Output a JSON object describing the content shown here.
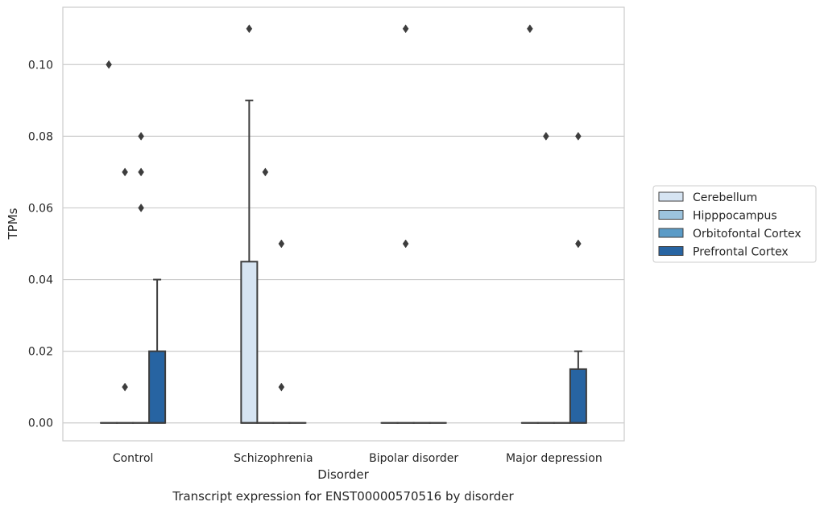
{
  "chart_data": {
    "type": "box",
    "title": "",
    "caption": "Transcript expression for ENST00000570516 by disorder",
    "xlabel": "Disorder",
    "ylabel": "TPMs",
    "categories": [
      "Control",
      "Schizophrenia",
      "Bipolar disorder",
      "Major depression"
    ],
    "ylim": [
      -0.005,
      0.116
    ],
    "yticks": [
      "0.00",
      "0.02",
      "0.04",
      "0.06",
      "0.08",
      "0.10"
    ],
    "ytick_values": [
      0,
      0.02,
      0.04,
      0.06,
      0.08,
      0.1
    ],
    "grid": true,
    "legend_position": "right",
    "series": [
      {
        "name": "Cerebellum",
        "color": "#d6e4f2",
        "boxes": [
          {
            "q1": 0,
            "median": 0,
            "q3": 0,
            "whisker_low": 0,
            "whisker_high": 0,
            "outliers": [
              0.1
            ]
          },
          {
            "q1": 0,
            "median": 0,
            "q3": 0.045,
            "whisker_low": 0,
            "whisker_high": 0.09,
            "outliers": [
              0.11
            ]
          },
          {
            "q1": 0,
            "median": 0,
            "q3": 0,
            "whisker_low": 0,
            "whisker_high": 0,
            "outliers": []
          },
          {
            "q1": 0,
            "median": 0,
            "q3": 0,
            "whisker_low": 0,
            "whisker_high": 0,
            "outliers": [
              0.11
            ]
          }
        ]
      },
      {
        "name": "Hipppocampus",
        "color": "#9cc3dd",
        "boxes": [
          {
            "q1": 0,
            "median": 0,
            "q3": 0,
            "whisker_low": 0,
            "whisker_high": 0,
            "outliers": [
              0.07,
              0.01
            ]
          },
          {
            "q1": 0,
            "median": 0,
            "q3": 0,
            "whisker_low": 0,
            "whisker_high": 0,
            "outliers": [
              0.07
            ]
          },
          {
            "q1": 0,
            "median": 0,
            "q3": 0,
            "whisker_low": 0,
            "whisker_high": 0,
            "outliers": [
              0.11,
              0.05
            ]
          },
          {
            "q1": 0,
            "median": 0,
            "q3": 0,
            "whisker_low": 0,
            "whisker_high": 0,
            "outliers": [
              0.08
            ]
          }
        ]
      },
      {
        "name": "Orbitofontal Cortex",
        "color": "#5a9bc7",
        "boxes": [
          {
            "q1": 0,
            "median": 0,
            "q3": 0,
            "whisker_low": 0,
            "whisker_high": 0,
            "outliers": [
              0.08,
              0.07,
              0.06
            ]
          },
          {
            "q1": 0,
            "median": 0,
            "q3": 0,
            "whisker_low": 0,
            "whisker_high": 0,
            "outliers": [
              0.05,
              0.01
            ]
          },
          {
            "q1": 0,
            "median": 0,
            "q3": 0,
            "whisker_low": 0,
            "whisker_high": 0,
            "outliers": []
          },
          {
            "q1": 0,
            "median": 0,
            "q3": 0,
            "whisker_low": 0,
            "whisker_high": 0,
            "outliers": []
          }
        ]
      },
      {
        "name": "Prefrontal Cortex",
        "color": "#2764a2",
        "boxes": [
          {
            "q1": 0,
            "median": 0,
            "q3": 0.02,
            "whisker_low": 0,
            "whisker_high": 0.04,
            "outliers": []
          },
          {
            "q1": 0,
            "median": 0,
            "q3": 0,
            "whisker_low": 0,
            "whisker_high": 0,
            "outliers": []
          },
          {
            "q1": 0,
            "median": 0,
            "q3": 0,
            "whisker_low": 0,
            "whisker_high": 0,
            "outliers": []
          },
          {
            "q1": 0,
            "median": 0,
            "q3": 0.015,
            "whisker_low": 0,
            "whisker_high": 0.02,
            "outliers": [
              0.08,
              0.05
            ]
          }
        ]
      }
    ]
  }
}
